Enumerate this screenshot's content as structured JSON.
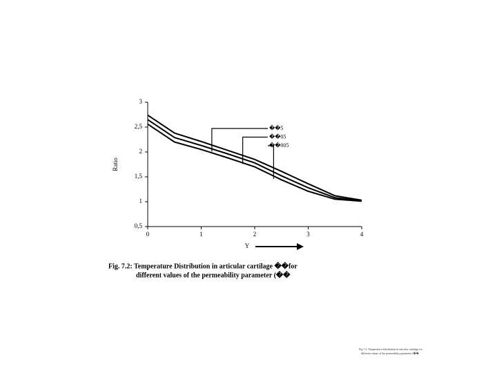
{
  "chart_data": {
    "type": "line",
    "x": [
      0,
      0.5,
      1,
      1.5,
      2,
      2.5,
      3,
      3.5,
      4
    ],
    "series": [
      {
        "name": "��5",
        "color": "#000000",
        "values": [
          2.74,
          2.38,
          2.21,
          2.03,
          1.85,
          1.61,
          1.36,
          1.12,
          1.03
        ]
      },
      {
        "name": "��05",
        "color": "#000000",
        "values": [
          2.65,
          2.29,
          2.13,
          1.96,
          1.78,
          1.52,
          1.28,
          1.08,
          1.02
        ]
      },
      {
        "name": "��005",
        "color": "#000000",
        "values": [
          2.56,
          2.2,
          2.05,
          1.88,
          1.7,
          1.44,
          1.21,
          1.05,
          1.01
        ]
      }
    ],
    "xlim": [
      0,
      4
    ],
    "xticks": [
      0,
      1,
      2,
      3,
      4
    ],
    "ylim": [
      0.5,
      3
    ],
    "yticks": [
      {
        "value": 0.5,
        "label": "0,5"
      },
      1,
      {
        "value": 1.5,
        "label": "1,5"
      },
      2,
      {
        "value": 2.5,
        "label": "2,5"
      },
      3
    ],
    "x_label": "Y",
    "y_label": "Ratio"
  },
  "caption": {
    "line1": "Fig. 7.2: Temperature Distribution in articular cartilage ��for",
    "line2": "different values of the permeability parameter (��"
  },
  "footnote": {
    "line1": "Fig 7.2: Temperature distribution in articular cartilage for",
    "line2": "different values of the permeability parameter (��"
  }
}
